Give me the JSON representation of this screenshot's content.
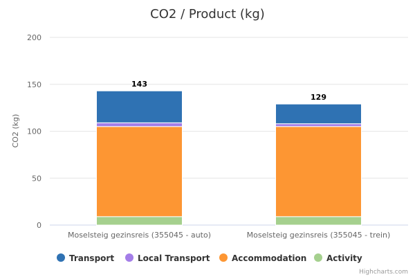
{
  "chart_data": {
    "type": "bar",
    "stacked": true,
    "title": "CO2 / Product (kg)",
    "xlabel": "",
    "ylabel": "CO2 (kg)",
    "ylim": [
      0,
      200
    ],
    "yticks": [
      0,
      50,
      100,
      150,
      200
    ],
    "grid": true,
    "legend_position": "bottom",
    "categories": [
      "Moselsteig gezinsreis (355045 - auto)",
      "Moselsteig gezinsreis (355045 - trein)"
    ],
    "totals": [
      143,
      129
    ],
    "series": [
      {
        "name": "Transport",
        "color": "#2f72b3",
        "values": [
          34,
          21
        ]
      },
      {
        "name": "Local Transport",
        "color": "#a47ee8",
        "values": [
          4,
          3
        ]
      },
      {
        "name": "Accommodation",
        "color": "#fd9633",
        "values": [
          96,
          96
        ]
      },
      {
        "name": "Activity",
        "color": "#a5d08e",
        "values": [
          9,
          9
        ]
      }
    ],
    "credits": "Highcharts.com"
  }
}
